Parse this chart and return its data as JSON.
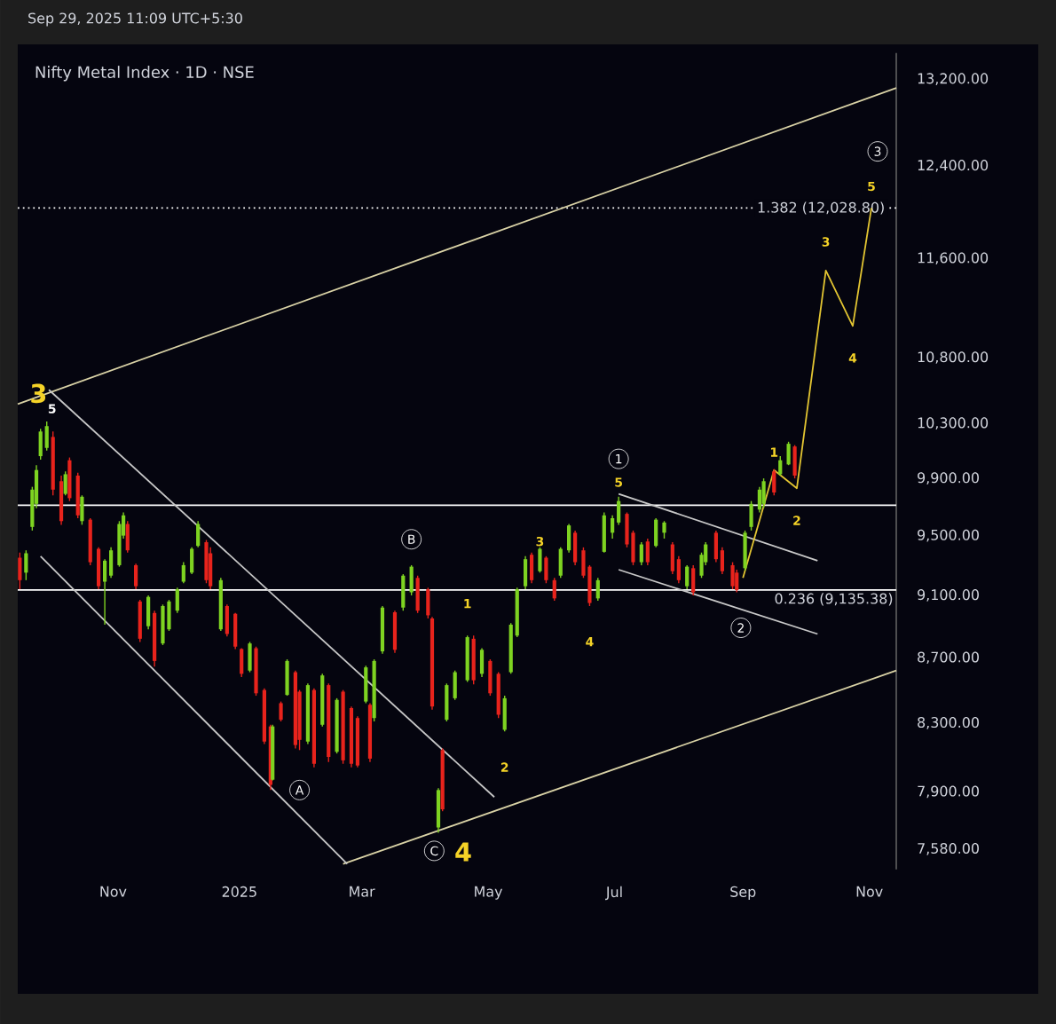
{
  "chart_data": {
    "type": "candlestick",
    "title": "Nifty Metal Index · 1D · NSE",
    "subtitle": "Sep 29, 2025 11:09 UTC+5:30",
    "log": true,
    "xlim": [
      "2024-09-16",
      "2025-11-14"
    ],
    "ylim": [
      7470,
      13450
    ],
    "xticks": [
      {
        "value": "2024-11-01",
        "label": "Nov"
      },
      {
        "value": "2025-01-01",
        "label": "2025"
      },
      {
        "value": "2025-03-01",
        "label": "Mar"
      },
      {
        "value": "2025-05-01",
        "label": "May"
      },
      {
        "value": "2025-07-01",
        "label": "Jul"
      },
      {
        "value": "2025-09-01",
        "label": "Sep"
      },
      {
        "value": "2025-11-01",
        "label": "Nov"
      }
    ],
    "yticks": [
      {
        "value": 7580,
        "label": "7,580.00"
      },
      {
        "value": 7900,
        "label": "7,900.00"
      },
      {
        "value": 8300,
        "label": "8,300.00"
      },
      {
        "value": 8700,
        "label": "8,700.00"
      },
      {
        "value": 9100,
        "label": "9,100.00"
      },
      {
        "value": 9500,
        "label": "9,500.00"
      },
      {
        "value": 9900,
        "label": "9,900.00"
      },
      {
        "value": 10300,
        "label": "10,300.00"
      },
      {
        "value": 10800,
        "label": "10,800.00"
      },
      {
        "value": 11600,
        "label": "11,600.00"
      },
      {
        "value": 12400,
        "label": "12,400.00"
      },
      {
        "value": 13200,
        "label": "13,200.00"
      }
    ],
    "x": [
      "2024-09-17",
      "2024-09-20",
      "2024-09-23",
      "2024-09-25",
      "2024-09-27",
      "2024-09-30",
      "2024-10-03",
      "2024-10-07",
      "2024-10-09",
      "2024-10-11",
      "2024-10-15",
      "2024-10-17",
      "2024-10-21",
      "2024-10-25",
      "2024-10-28",
      "2024-10-31",
      "2024-11-04",
      "2024-11-06",
      "2024-11-08",
      "2024-11-12",
      "2024-11-14",
      "2024-11-18",
      "2024-11-21",
      "2024-11-25",
      "2024-11-28",
      "2024-12-02",
      "2024-12-05",
      "2024-12-09",
      "2024-12-12",
      "2024-12-16",
      "2024-12-18",
      "2024-12-23",
      "2024-12-26",
      "2024-12-30",
      "2025-01-02",
      "2025-01-06",
      "2025-01-09",
      "2025-01-13",
      "2025-01-16",
      "2025-01-17",
      "2025-01-21",
      "2025-01-24",
      "2025-01-28",
      "2025-01-30",
      "2025-02-03",
      "2025-02-06",
      "2025-02-10",
      "2025-02-13",
      "2025-02-17",
      "2025-02-20",
      "2025-02-24",
      "2025-02-27",
      "2025-03-03",
      "2025-03-05",
      "2025-03-07",
      "2025-03-11",
      "2025-03-17",
      "2025-03-21",
      "2025-03-25",
      "2025-03-28",
      "2025-04-02",
      "2025-04-04",
      "2025-04-07",
      "2025-04-09",
      "2025-04-11",
      "2025-04-15",
      "2025-04-21",
      "2025-04-24",
      "2025-04-28",
      "2025-05-02",
      "2025-05-06",
      "2025-05-09",
      "2025-05-12",
      "2025-05-15",
      "2025-05-19",
      "2025-05-22",
      "2025-05-26",
      "2025-05-29",
      "2025-06-02",
      "2025-06-05",
      "2025-06-09",
      "2025-06-12",
      "2025-06-16",
      "2025-06-19",
      "2025-06-23",
      "2025-06-26",
      "2025-06-30",
      "2025-07-03",
      "2025-07-07",
      "2025-07-10",
      "2025-07-14",
      "2025-07-17",
      "2025-07-21",
      "2025-07-25",
      "2025-07-29",
      "2025-08-01",
      "2025-08-05",
      "2025-08-08",
      "2025-08-12",
      "2025-08-14",
      "2025-08-19",
      "2025-08-22",
      "2025-08-27",
      "2025-08-29",
      "2025-09-02",
      "2025-09-05",
      "2025-09-09",
      "2025-09-11",
      "2025-09-16",
      "2025-09-19",
      "2025-09-23",
      "2025-09-26"
    ],
    "ohlc": [
      [
        9350,
        9385,
        9140,
        9200
      ],
      [
        9250,
        9400,
        9200,
        9380
      ],
      [
        9560,
        9840,
        9535,
        9820
      ],
      [
        9720,
        9995,
        9690,
        9960
      ],
      [
        10060,
        10260,
        10035,
        10240
      ],
      [
        10120,
        10315,
        10100,
        10280
      ],
      [
        10200,
        10240,
        9780,
        9820
      ],
      [
        9880,
        9920,
        9575,
        9600
      ],
      [
        9790,
        9950,
        9780,
        9930
      ],
      [
        10030,
        10050,
        9740,
        9760
      ],
      [
        9920,
        9940,
        9620,
        9640
      ],
      [
        9600,
        9780,
        9575,
        9770
      ],
      [
        9610,
        9620,
        9300,
        9320
      ],
      [
        9410,
        9420,
        9140,
        9160
      ],
      [
        9190,
        9340,
        8910,
        9330
      ],
      [
        9230,
        9420,
        9215,
        9400
      ],
      [
        9300,
        9600,
        9290,
        9580
      ],
      [
        9500,
        9660,
        9480,
        9640
      ],
      [
        9580,
        9600,
        9385,
        9400
      ],
      [
        9300,
        9310,
        9140,
        9160
      ],
      [
        9060,
        9070,
        8800,
        8820
      ],
      [
        8900,
        9100,
        8880,
        9090
      ],
      [
        8985,
        9000,
        8645,
        8680
      ],
      [
        8790,
        9040,
        8780,
        9030
      ],
      [
        8880,
        9070,
        8870,
        9060
      ],
      [
        9000,
        9150,
        8985,
        9140
      ],
      [
        9190,
        9320,
        9180,
        9300
      ],
      [
        9250,
        9420,
        9240,
        9410
      ],
      [
        9430,
        9600,
        9420,
        9580
      ],
      [
        9455,
        9470,
        9180,
        9200
      ],
      [
        9380,
        9420,
        9140,
        9160
      ],
      [
        8880,
        9215,
        8870,
        9200
      ],
      [
        9030,
        9040,
        8835,
        8850
      ],
      [
        8980,
        8985,
        8755,
        8770
      ],
      [
        8755,
        8760,
        8580,
        8600
      ],
      [
        8620,
        8800,
        8610,
        8790
      ],
      [
        8760,
        8770,
        8465,
        8480
      ],
      [
        8500,
        8510,
        8175,
        8190
      ],
      [
        8280,
        8290,
        7910,
        7940
      ],
      [
        7970,
        8290,
        7965,
        8280
      ],
      [
        8420,
        8430,
        8310,
        8320
      ],
      [
        8470,
        8690,
        8465,
        8680
      ],
      [
        8610,
        8620,
        8150,
        8170
      ],
      [
        8490,
        8500,
        8140,
        8200
      ],
      [
        8190,
        8540,
        8175,
        8530
      ],
      [
        8500,
        8510,
        8040,
        8060
      ],
      [
        8290,
        8600,
        8280,
        8590
      ],
      [
        8530,
        8540,
        8070,
        8100
      ],
      [
        8130,
        8450,
        8120,
        8440
      ],
      [
        8490,
        8500,
        8060,
        8080
      ],
      [
        8390,
        8400,
        8040,
        8060
      ],
      [
        8330,
        8340,
        8040,
        8050
      ],
      [
        8430,
        8650,
        8420,
        8640
      ],
      [
        8410,
        8420,
        8070,
        8090
      ],
      [
        8330,
        8690,
        8310,
        8680
      ],
      [
        8740,
        9030,
        8725,
        9020
      ],
      [
        8990,
        9000,
        8730,
        8750
      ],
      [
        9020,
        9240,
        9000,
        9230
      ],
      [
        9120,
        9300,
        9100,
        9290
      ],
      [
        9215,
        9230,
        8985,
        9000
      ],
      [
        9140,
        9150,
        8950,
        8970
      ],
      [
        8950,
        8960,
        8380,
        8400
      ],
      [
        7700,
        7920,
        7670,
        7910
      ],
      [
        8140,
        8150,
        7790,
        7800
      ],
      [
        8320,
        8540,
        8310,
        8530
      ],
      [
        8450,
        8620,
        8440,
        8610
      ],
      [
        8560,
        8840,
        8550,
        8830
      ],
      [
        8820,
        8840,
        8535,
        8560
      ],
      [
        8600,
        8760,
        8580,
        8750
      ],
      [
        8680,
        8690,
        8465,
        8480
      ],
      [
        8600,
        8610,
        8330,
        8350
      ],
      [
        8260,
        8465,
        8250,
        8450
      ],
      [
        8610,
        8920,
        8600,
        8910
      ],
      [
        8840,
        9150,
        8830,
        9140
      ],
      [
        9160,
        9360,
        9140,
        9340
      ],
      [
        9370,
        9385,
        9180,
        9200
      ],
      [
        9260,
        9420,
        9250,
        9410
      ],
      [
        9350,
        9360,
        9180,
        9200
      ],
      [
        9200,
        9215,
        9065,
        9080
      ],
      [
        9230,
        9420,
        9215,
        9410
      ],
      [
        9400,
        9580,
        9385,
        9570
      ],
      [
        9520,
        9535,
        9300,
        9320
      ],
      [
        9400,
        9420,
        9215,
        9230
      ],
      [
        9290,
        9300,
        9030,
        9050
      ],
      [
        9080,
        9215,
        9065,
        9200
      ],
      [
        9390,
        9660,
        9385,
        9640
      ],
      [
        9520,
        9640,
        9480,
        9620
      ],
      [
        9590,
        9770,
        9575,
        9740
      ],
      [
        9650,
        9660,
        9420,
        9440
      ],
      [
        9520,
        9535,
        9300,
        9320
      ],
      [
        9320,
        9455,
        9300,
        9440
      ],
      [
        9460,
        9480,
        9300,
        9320
      ],
      [
        9430,
        9620,
        9420,
        9610
      ],
      [
        9520,
        9600,
        9480,
        9590
      ],
      [
        9440,
        9455,
        9240,
        9260
      ],
      [
        9340,
        9360,
        9180,
        9200
      ],
      [
        9160,
        9300,
        9140,
        9290
      ],
      [
        9280,
        9300,
        9100,
        9120
      ],
      [
        9230,
        9385,
        9215,
        9370
      ],
      [
        9320,
        9455,
        9300,
        9440
      ],
      [
        9520,
        9535,
        9320,
        9340
      ],
      [
        9400,
        9420,
        9240,
        9260
      ],
      [
        9300,
        9320,
        9140,
        9160
      ],
      [
        9250,
        9270,
        9120,
        9135
      ],
      [
        9280,
        9535,
        9265,
        9520
      ],
      [
        9560,
        9740,
        9535,
        9720
      ],
      [
        9680,
        9840,
        9660,
        9820
      ],
      [
        9720,
        9900,
        9690,
        9880
      ],
      [
        9950,
        9965,
        9780,
        9800
      ],
      [
        9930,
        10060,
        9920,
        10030
      ],
      [
        10000,
        10165,
        9995,
        10150
      ],
      [
        10130,
        10140,
        9900,
        9920
      ]
    ],
    "series": [
      {
        "type": "line",
        "color": "#d9d2a6",
        "x": [
          "2024-09-16",
          "2025-11-14"
        ],
        "values": [
          10445,
          13116
        ]
      },
      {
        "type": "line",
        "color": "#d9d2a6",
        "x": [
          "2025-02-20",
          "2025-11-14"
        ],
        "values": [
          7500,
          8620
        ]
      },
      {
        "type": "line",
        "color": "#c8c8c8",
        "x": [
          "2024-10-01",
          "2025-05-04"
        ],
        "values": [
          10553,
          7870
        ]
      },
      {
        "type": "line",
        "color": "#c8c8c8",
        "x": [
          "2024-09-27",
          "2025-02-22"
        ],
        "values": [
          9360,
          7500
        ]
      },
      {
        "type": "line",
        "color": "#c8c8c8",
        "x": [
          "2025-07-03",
          "2025-10-07"
        ],
        "values": [
          9790,
          9330
        ]
      },
      {
        "type": "line",
        "color": "#c8c8c8",
        "x": [
          "2025-07-03",
          "2025-10-07"
        ],
        "values": [
          9270,
          8850
        ]
      },
      {
        "type": "line",
        "color": "#e3c532",
        "x": [
          "2025-09-01",
          "2025-09-16",
          "2025-09-27",
          "2025-10-11",
          "2025-10-24",
          "2025-11-02"
        ],
        "values": [
          9215,
          9960,
          9830,
          11500,
          11050,
          12030
        ]
      }
    ],
    "ref_lines": [
      {
        "axis": "y",
        "value": 9710,
        "color": "#ffffff"
      },
      {
        "axis": "y",
        "value": 9135.38,
        "label": "0.236 (9,135.38)",
        "color": "#ffffff"
      },
      {
        "axis": "y",
        "value": 12028.8,
        "label": "1.382 (12,028.80)",
        "color": "#ffffff",
        "line_style": "dotted"
      }
    ],
    "annotations": [
      {
        "text": "3",
        "x": "2024-09-26",
        "y": 10525
      },
      {
        "text": "5",
        "x": "2024-09-30",
        "y": 10315
      },
      {
        "text": "A",
        "x": "2025-01-30",
        "y": 7910
      },
      {
        "text": "B",
        "x": "2025-03-25",
        "y": 9475
      },
      {
        "text": "C",
        "x": "2025-04-05",
        "y": 7570
      },
      {
        "text": "4",
        "x": "2025-04-07",
        "y": 7670
      },
      {
        "text": "1",
        "x": "2025-04-21",
        "y": 8840
      },
      {
        "text": "2",
        "x": "2025-05-09",
        "y": 8250
      },
      {
        "text": "3",
        "x": "2025-05-26",
        "y": 9460
      },
      {
        "text": "4",
        "x": "2025-06-19",
        "y": 9030
      },
      {
        "text": "1",
        "x": "2025-07-03",
        "y": 10040
      },
      {
        "text": "5",
        "x": "2025-07-03",
        "y": 9770
      },
      {
        "text": "2",
        "x": "2025-08-31",
        "y": 8890
      },
      {
        "text": "1",
        "x": "2025-09-16",
        "y": 9960
      },
      {
        "text": "2",
        "x": "2025-09-27",
        "y": 9830
      },
      {
        "text": "3",
        "x": "2025-10-11",
        "y": 11500
      },
      {
        "text": "4",
        "x": "2025-10-24",
        "y": 11050
      },
      {
        "text": "5",
        "x": "2025-11-02",
        "y": 12030
      },
      {
        "text": "3",
        "x": "2025-11-05",
        "y": 12530
      }
    ]
  }
}
